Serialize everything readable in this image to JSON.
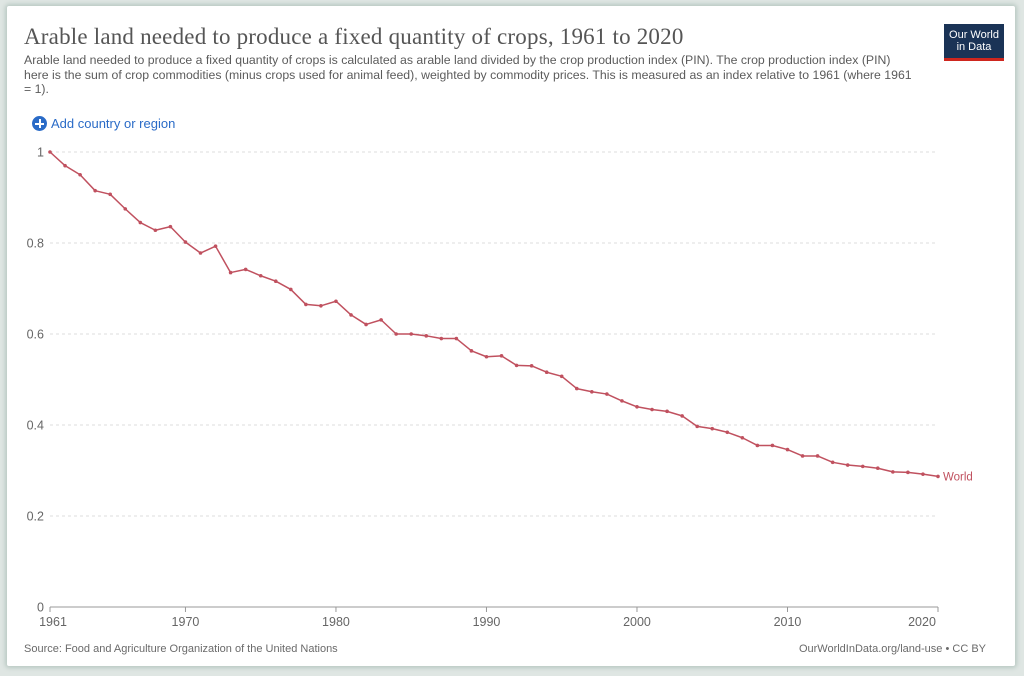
{
  "header": {
    "title": "Arable land needed to produce a fixed quantity of crops, 1961 to 2020",
    "subtitle": "Arable land needed to produce a fixed quantity of crops is calculated as arable land divided by the crop production index (PIN). The crop production index (PIN) here is the sum of crop commodities (minus crops used for animal feed), weighted by commodity prices. This is measured as an index relative to 1961 (where 1961 = 1)."
  },
  "logo": {
    "line1": "Our World",
    "line2": "in Data"
  },
  "controls": {
    "add_label": "Add country or region"
  },
  "colors": {
    "line": "#c0515f",
    "grid": "#dcdcdc",
    "axis": "#666666",
    "label": "#666666"
  },
  "footer": {
    "source": "Source: Food and Agriculture Organization of the United Nations",
    "license": "OurWorldInData.org/land-use • CC BY"
  },
  "chart_data": {
    "type": "line",
    "title": "Arable land needed to produce a fixed quantity of crops, 1961 to 2020",
    "xlabel": "",
    "ylabel": "",
    "xlim": [
      1961,
      2020
    ],
    "ylim": [
      0,
      1
    ],
    "grid": true,
    "y_ticks": [
      0,
      0.2,
      0.4,
      0.6,
      0.8,
      1
    ],
    "y_tick_labels": [
      "0",
      "0.2",
      "0.4",
      "0.6",
      "0.8",
      "1"
    ],
    "x_ticks": [
      1961,
      1970,
      1980,
      1990,
      2000,
      2010,
      2020
    ],
    "x_tick_labels": [
      "1961",
      "1970",
      "1980",
      "1990",
      "2000",
      "2010",
      "2020"
    ],
    "series": [
      {
        "name": "World",
        "x": [
          1961,
          1962,
          1963,
          1964,
          1965,
          1966,
          1967,
          1968,
          1969,
          1970,
          1971,
          1972,
          1973,
          1974,
          1975,
          1976,
          1977,
          1978,
          1979,
          1980,
          1981,
          1982,
          1983,
          1984,
          1985,
          1986,
          1987,
          1988,
          1989,
          1990,
          1991,
          1992,
          1993,
          1994,
          1995,
          1996,
          1997,
          1998,
          1999,
          2000,
          2001,
          2002,
          2003,
          2004,
          2005,
          2006,
          2007,
          2008,
          2009,
          2010,
          2011,
          2012,
          2013,
          2014,
          2015,
          2016,
          2017,
          2018,
          2019,
          2020
        ],
        "values": [
          1.0,
          0.97,
          0.95,
          0.915,
          0.907,
          0.875,
          0.845,
          0.828,
          0.836,
          0.802,
          0.778,
          0.793,
          0.735,
          0.742,
          0.728,
          0.716,
          0.698,
          0.665,
          0.662,
          0.672,
          0.642,
          0.621,
          0.631,
          0.6,
          0.6,
          0.596,
          0.59,
          0.59,
          0.563,
          0.55,
          0.552,
          0.531,
          0.53,
          0.516,
          0.507,
          0.48,
          0.473,
          0.468,
          0.453,
          0.44,
          0.434,
          0.43,
          0.42,
          0.397,
          0.392,
          0.384,
          0.372,
          0.355,
          0.355,
          0.346,
          0.332,
          0.332,
          0.318,
          0.312,
          0.309,
          0.305,
          0.297,
          0.296,
          0.292,
          0.287
        ]
      }
    ]
  }
}
